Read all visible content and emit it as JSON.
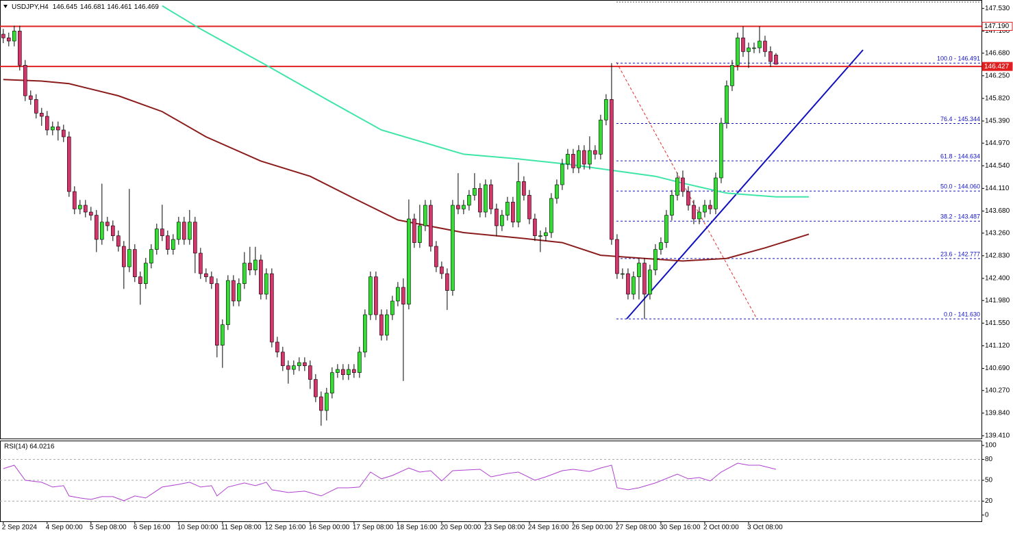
{
  "chart_data": {
    "type": "candlestick",
    "title": "USDJPY,H4",
    "up_color": "#2fe02f",
    "down_color": "#d8336a",
    "candles": [
      [
        147.04,
        147.14,
        146.87,
        146.97
      ],
      [
        146.97,
        147.07,
        146.81,
        146.91
      ],
      [
        146.91,
        147.2,
        146.81,
        147.1
      ],
      [
        147.1,
        147.2,
        146.35,
        146.45
      ],
      [
        146.45,
        146.55,
        145.77,
        145.87
      ],
      [
        145.87,
        145.97,
        145.7,
        145.8
      ],
      [
        145.8,
        145.9,
        145.44,
        145.54
      ],
      [
        145.54,
        145.64,
        145.3,
        145.48
      ],
      [
        145.48,
        145.58,
        145.12,
        145.22
      ],
      [
        145.22,
        145.38,
        145.12,
        145.28
      ],
      [
        145.28,
        145.38,
        145.02,
        145.22
      ],
      [
        145.22,
        145.32,
        144.99,
        145.09
      ],
      [
        145.09,
        145.19,
        143.95,
        144.05
      ],
      [
        144.05,
        144.15,
        143.62,
        143.72
      ],
      [
        143.72,
        143.89,
        143.62,
        143.79
      ],
      [
        143.79,
        143.89,
        143.56,
        143.66
      ],
      [
        143.66,
        143.76,
        143.5,
        143.6
      ],
      [
        143.6,
        143.7,
        142.9,
        143.14
      ],
      [
        143.14,
        144.2,
        143.04,
        143.47
      ],
      [
        143.47,
        143.57,
        143.3,
        143.4
      ],
      [
        143.4,
        143.5,
        143.11,
        143.21
      ],
      [
        143.21,
        143.31,
        142.91,
        143.01
      ],
      [
        143.01,
        143.11,
        142.2,
        142.62
      ],
      [
        142.62,
        144.1,
        142.52,
        142.95
      ],
      [
        142.95,
        143.05,
        142.33,
        142.43
      ],
      [
        142.43,
        142.53,
        141.9,
        142.3
      ],
      [
        142.3,
        142.79,
        142.2,
        142.69
      ],
      [
        142.69,
        143.05,
        142.59,
        142.95
      ],
      [
        142.95,
        143.44,
        142.85,
        143.34
      ],
      [
        143.34,
        143.8,
        143.11,
        143.21
      ],
      [
        143.21,
        143.31,
        142.85,
        142.95
      ],
      [
        142.95,
        143.24,
        142.85,
        143.14
      ],
      [
        143.14,
        143.57,
        143.04,
        143.47
      ],
      [
        143.47,
        143.57,
        143.04,
        143.14
      ],
      [
        143.14,
        143.7,
        143.04,
        143.47
      ],
      [
        143.47,
        143.57,
        142.5,
        142.88
      ],
      [
        142.88,
        142.98,
        142.39,
        142.49
      ],
      [
        142.49,
        142.59,
        142.33,
        142.43
      ],
      [
        142.43,
        142.53,
        142.2,
        142.3
      ],
      [
        142.3,
        142.4,
        140.9,
        141.13
      ],
      [
        141.13,
        141.62,
        140.7,
        141.52
      ],
      [
        141.52,
        142.46,
        141.42,
        142.36
      ],
      [
        142.36,
        142.46,
        141.87,
        141.97
      ],
      [
        141.97,
        142.4,
        141.87,
        142.3
      ],
      [
        142.3,
        142.9,
        142.2,
        142.69
      ],
      [
        142.69,
        143.0,
        142.46,
        142.56
      ],
      [
        142.56,
        143.0,
        142.46,
        142.75
      ],
      [
        142.75,
        142.85,
        142.0,
        142.1
      ],
      [
        142.1,
        142.59,
        142.0,
        142.49
      ],
      [
        142.49,
        142.59,
        141.09,
        141.19
      ],
      [
        141.19,
        141.29,
        140.9,
        141.0
      ],
      [
        141.0,
        141.1,
        140.64,
        140.74
      ],
      [
        140.74,
        140.84,
        140.4,
        140.67
      ],
      [
        140.67,
        140.84,
        140.57,
        140.74
      ],
      [
        140.74,
        140.9,
        140.64,
        140.8
      ],
      [
        140.8,
        140.9,
        140.64,
        140.74
      ],
      [
        140.74,
        140.84,
        140.3,
        140.48
      ],
      [
        140.48,
        140.58,
        140.05,
        140.15
      ],
      [
        140.15,
        140.25,
        139.6,
        139.89
      ],
      [
        139.89,
        140.32,
        139.7,
        140.22
      ],
      [
        140.22,
        140.71,
        140.12,
        140.61
      ],
      [
        140.61,
        140.77,
        140.51,
        140.67
      ],
      [
        140.67,
        140.77,
        140.47,
        140.57
      ],
      [
        140.57,
        140.77,
        140.47,
        140.67
      ],
      [
        140.67,
        140.77,
        140.51,
        140.61
      ],
      [
        140.61,
        141.1,
        140.51,
        141.0
      ],
      [
        141.0,
        141.81,
        140.9,
        141.71
      ],
      [
        141.71,
        142.53,
        141.61,
        142.43
      ],
      [
        142.43,
        142.53,
        141.61,
        141.71
      ],
      [
        141.71,
        141.81,
        141.22,
        141.32
      ],
      [
        141.32,
        141.81,
        141.22,
        141.71
      ],
      [
        141.71,
        142.07,
        141.61,
        141.97
      ],
      [
        141.97,
        142.33,
        141.87,
        142.23
      ],
      [
        142.23,
        142.4,
        140.45,
        141.91
      ],
      [
        141.91,
        143.9,
        141.81,
        143.53
      ],
      [
        143.53,
        143.63,
        142.98,
        143.08
      ],
      [
        143.08,
        143.8,
        142.98,
        143.4
      ],
      [
        143.4,
        143.89,
        143.3,
        143.79
      ],
      [
        143.79,
        143.89,
        142.91,
        143.01
      ],
      [
        143.01,
        143.11,
        142.52,
        142.62
      ],
      [
        142.62,
        142.72,
        142.39,
        142.49
      ],
      [
        142.49,
        142.59,
        141.8,
        142.17
      ],
      [
        142.17,
        143.89,
        142.07,
        143.79
      ],
      [
        143.79,
        144.4,
        143.62,
        143.72
      ],
      [
        143.72,
        143.89,
        143.62,
        143.79
      ],
      [
        143.79,
        144.08,
        143.69,
        143.98
      ],
      [
        143.98,
        144.4,
        143.88,
        144.11
      ],
      [
        144.11,
        144.21,
        143.56,
        143.66
      ],
      [
        143.66,
        144.28,
        143.56,
        144.18
      ],
      [
        144.18,
        144.28,
        143.62,
        143.72
      ],
      [
        143.72,
        143.82,
        143.2,
        143.4
      ],
      [
        143.4,
        143.7,
        143.3,
        143.6
      ],
      [
        143.6,
        143.95,
        143.5,
        143.85
      ],
      [
        143.85,
        143.95,
        143.37,
        143.47
      ],
      [
        143.47,
        144.6,
        143.37,
        144.24
      ],
      [
        144.24,
        144.34,
        143.88,
        143.98
      ],
      [
        143.98,
        144.08,
        143.43,
        143.53
      ],
      [
        143.53,
        143.63,
        143.11,
        143.21
      ],
      [
        143.21,
        143.31,
        142.9,
        143.21
      ],
      [
        143.21,
        143.37,
        143.11,
        143.27
      ],
      [
        143.27,
        144.02,
        143.17,
        143.92
      ],
      [
        143.92,
        144.28,
        143.82,
        144.18
      ],
      [
        144.18,
        144.67,
        144.08,
        144.57
      ],
      [
        144.57,
        144.86,
        144.47,
        144.76
      ],
      [
        144.76,
        144.86,
        144.4,
        144.5
      ],
      [
        144.5,
        144.93,
        144.4,
        144.83
      ],
      [
        144.83,
        144.93,
        144.47,
        144.57
      ],
      [
        144.57,
        145.1,
        144.47,
        144.83
      ],
      [
        144.83,
        144.93,
        144.66,
        144.76
      ],
      [
        144.76,
        145.51,
        144.66,
        145.41
      ],
      [
        145.41,
        145.9,
        145.31,
        145.8
      ],
      [
        145.8,
        146.49,
        143.04,
        143.14
      ],
      [
        143.14,
        143.24,
        142.39,
        142.49
      ],
      [
        142.49,
        142.59,
        142.39,
        142.49
      ],
      [
        142.49,
        142.59,
        142.0,
        142.1
      ],
      [
        142.1,
        142.53,
        142.0,
        142.43
      ],
      [
        142.43,
        142.79,
        142.0,
        142.69
      ],
      [
        142.69,
        142.79,
        141.63,
        142.1
      ],
      [
        142.1,
        142.66,
        142.0,
        142.56
      ],
      [
        142.56,
        143.05,
        142.46,
        142.95
      ],
      [
        142.95,
        143.18,
        142.85,
        143.08
      ],
      [
        143.08,
        143.7,
        142.98,
        143.6
      ],
      [
        143.6,
        144.08,
        143.5,
        143.98
      ],
      [
        143.98,
        144.41,
        143.88,
        144.31
      ],
      [
        144.31,
        144.45,
        143.95,
        144.05
      ],
      [
        144.05,
        144.15,
        143.69,
        143.79
      ],
      [
        143.79,
        143.89,
        143.43,
        143.53
      ],
      [
        143.53,
        143.76,
        143.43,
        143.66
      ],
      [
        143.66,
        143.89,
        143.56,
        143.79
      ],
      [
        143.79,
        143.89,
        143.62,
        143.72
      ],
      [
        143.72,
        144.41,
        143.62,
        144.31
      ],
      [
        144.31,
        145.45,
        144.21,
        145.35
      ],
      [
        145.35,
        146.16,
        145.25,
        146.06
      ],
      [
        146.06,
        146.55,
        145.96,
        146.45
      ],
      [
        146.45,
        147.07,
        146.35,
        146.97
      ],
      [
        146.97,
        147.19,
        146.61,
        146.71
      ],
      [
        146.71,
        146.88,
        146.4,
        146.78
      ],
      [
        146.78,
        146.88,
        146.68,
        146.78
      ],
      [
        146.78,
        147.19,
        146.68,
        146.91
      ],
      [
        146.91,
        147.01,
        146.61,
        146.71
      ],
      [
        146.71,
        146.81,
        146.42,
        146.52
      ],
      [
        146.645,
        146.681,
        146.461,
        146.469
      ]
    ],
    "xlim": [
      -0.6,
      178.5
    ],
    "xticks": [
      {
        "value": 0,
        "label": "2 Sep 2024"
      },
      {
        "value": 8,
        "label": "4 Sep 00:00"
      },
      {
        "value": 16,
        "label": "5 Sep 08:00"
      },
      {
        "value": 24,
        "label": "6 Sep 16:00"
      },
      {
        "value": 32,
        "label": "10 Sep 00:00"
      },
      {
        "value": 40,
        "label": "11 Sep 08:00"
      },
      {
        "value": 48,
        "label": "12 Sep 16:00"
      },
      {
        "value": 56,
        "label": "16 Sep 00:00"
      },
      {
        "value": 64,
        "label": "17 Sep 08:00"
      },
      {
        "value": 72,
        "label": "18 Sep 16:00"
      },
      {
        "value": 80,
        "label": "20 Sep 00:00"
      },
      {
        "value": 88,
        "label": "23 Sep 08:00"
      },
      {
        "value": 96,
        "label": "24 Sep 16:00"
      },
      {
        "value": 104,
        "label": "26 Sep 00:00"
      },
      {
        "value": 112,
        "label": "27 Sep 08:00"
      },
      {
        "value": 120,
        "label": "30 Sep 16:00"
      },
      {
        "value": 128,
        "label": "2 Oct 00:00"
      },
      {
        "value": 136,
        "label": "3 Oct 08:00"
      }
    ],
    "ylim": [
      139.37,
      147.69
    ],
    "yticks": [
      {
        "value": 147.53,
        "label": "147.530"
      },
      {
        "value": 147.1,
        "label": "147.100"
      },
      {
        "value": 146.68,
        "label": "146.680"
      },
      {
        "value": 146.25,
        "label": "146.250"
      },
      {
        "value": 145.82,
        "label": "145.820"
      },
      {
        "value": 145.39,
        "label": "145.390"
      },
      {
        "value": 144.97,
        "label": "144.970"
      },
      {
        "value": 144.54,
        "label": "144.540"
      },
      {
        "value": 144.11,
        "label": "144.110"
      },
      {
        "value": 143.68,
        "label": "143.680"
      },
      {
        "value": 143.26,
        "label": "143.260"
      },
      {
        "value": 142.83,
        "label": "142.830"
      },
      {
        "value": 142.4,
        "label": "142.400"
      },
      {
        "value": 141.98,
        "label": "141.980"
      },
      {
        "value": 141.55,
        "label": "141.550"
      },
      {
        "value": 141.12,
        "label": "141.120"
      },
      {
        "value": 140.69,
        "label": "140.690"
      },
      {
        "value": 140.27,
        "label": "140.270"
      },
      {
        "value": 139.84,
        "label": "139.840"
      },
      {
        "value": 139.41,
        "label": "139.410"
      }
    ],
    "moving_averages": [
      {
        "color": "#3de6a6",
        "x": [
          29,
          36,
          48,
          59,
          69,
          84,
          94,
          103,
          112,
          119,
          124,
          132,
          141,
          147
        ],
        "values": [
          147.58,
          147.14,
          146.45,
          145.8,
          145.22,
          144.76,
          144.67,
          144.57,
          144.44,
          144.34,
          144.21,
          144.02,
          143.95,
          143.95
        ]
      },
      {
        "color": "#8b1c1c",
        "x": [
          0,
          7,
          12,
          21,
          29,
          37,
          47,
          56,
          64,
          72,
          84,
          94,
          102,
          109,
          117,
          124,
          132,
          139,
          147
        ],
        "values": [
          146.18,
          146.15,
          146.1,
          145.87,
          145.57,
          145.09,
          144.63,
          144.34,
          143.92,
          143.51,
          143.27,
          143.17,
          143.08,
          142.84,
          142.78,
          142.73,
          142.78,
          142.98,
          143.24
        ]
      }
    ],
    "hlines": [
      {
        "value": 147.19,
        "label": "147.190",
        "color": "#e02020",
        "filled": false
      },
      {
        "value": 146.427,
        "label": "146.427",
        "color": "#e02020",
        "filled": true
      }
    ],
    "fibonacci": {
      "color": "#1010c0",
      "levels": [
        {
          "value": 146.491,
          "label": "100.0 - 146.491"
        },
        {
          "value": 145.344,
          "label": "76.4 - 145.344"
        },
        {
          "value": 144.634,
          "label": "61.8 - 144.634"
        },
        {
          "value": 144.06,
          "label": "50.0 - 144.060"
        },
        {
          "value": 143.487,
          "label": "38.2 - 143.487"
        },
        {
          "value": 142.777,
          "label": "23.6 - 142.777"
        },
        {
          "value": 141.63,
          "label": "0.0 - 141.630"
        }
      ]
    },
    "rsi": {
      "label": "RSI(14) 64.0216",
      "color": "#b040d0",
      "ylim": [
        -9,
        106
      ],
      "yticks": [
        0,
        20,
        50,
        80,
        100
      ],
      "levels": [
        20,
        50,
        80
      ],
      "x": [
        0,
        2,
        4,
        7,
        9,
        11,
        12,
        14,
        16,
        18,
        20,
        22,
        24,
        26,
        29,
        32,
        34,
        36,
        38,
        39,
        41,
        44,
        46,
        48,
        49,
        52,
        55,
        58,
        61,
        63,
        65,
        67,
        69,
        71,
        74,
        76,
        78,
        80,
        82,
        87,
        89,
        92,
        94,
        97,
        99,
        102,
        104,
        107,
        109,
        111,
        112,
        114,
        116,
        119,
        123,
        125,
        127,
        129,
        131,
        134,
        136,
        138,
        141
      ],
      "values": [
        66.7,
        71.6,
        50.0,
        47.1,
        40.2,
        42.2,
        27.5,
        24.5,
        22.5,
        26.5,
        26.5,
        20.6,
        27.5,
        24.5,
        40.2,
        44.1,
        47.1,
        40.2,
        42.2,
        27.5,
        40.2,
        46.1,
        42.2,
        47.1,
        36.3,
        32.4,
        34.3,
        27.5,
        39.2,
        39.2,
        40.2,
        61.8,
        52.0,
        56.9,
        67.6,
        61.8,
        63.7,
        49.0,
        63.7,
        65.7,
        54.9,
        59.8,
        61.8,
        50.0,
        54.9,
        63.7,
        65.7,
        62.7,
        67.6,
        71.6,
        39.2,
        36.3,
        39.2,
        46.1,
        58.8,
        52.0,
        53.9,
        49.0,
        61.8,
        74.5,
        71.6,
        71.6,
        65.7
      ]
    }
  }
}
